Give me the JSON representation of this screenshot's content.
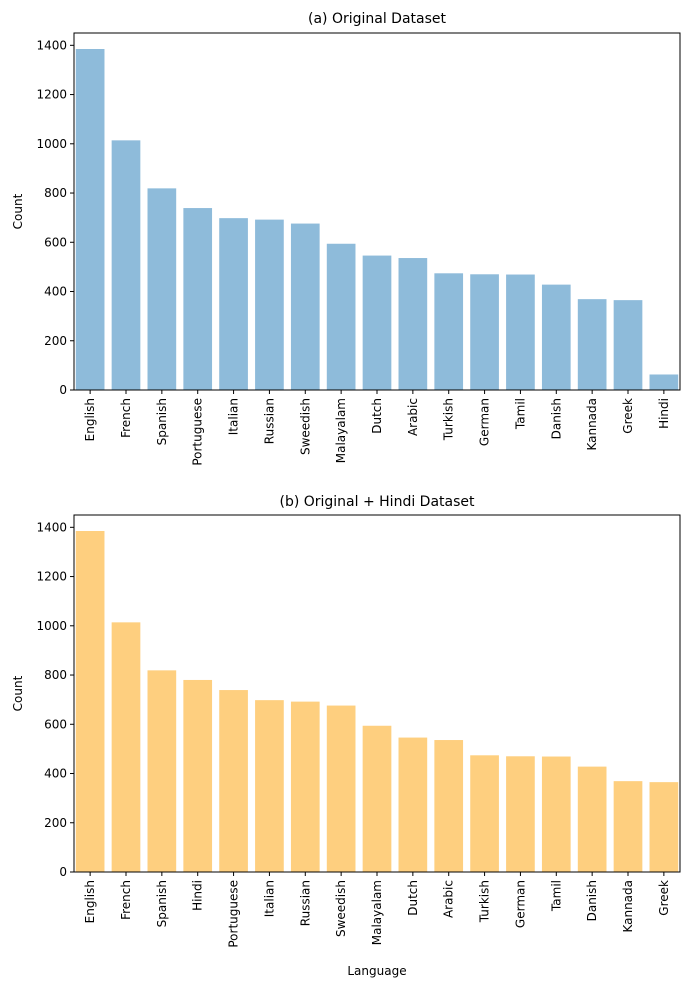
{
  "chart_data": [
    {
      "type": "bar",
      "title": "(a) Original Dataset",
      "xlabel": "",
      "ylabel": "Count",
      "ylim": [
        0,
        1450
      ],
      "yticks": [
        0,
        200,
        400,
        600,
        800,
        1000,
        1200,
        1400
      ],
      "color": "#8ebbda",
      "categories": [
        "English",
        "French",
        "Spanish",
        "Portuguese",
        "Italian",
        "Russian",
        "Sweedish",
        "Malayalam",
        "Dutch",
        "Arabic",
        "Turkish",
        "German",
        "Tamil",
        "Danish",
        "Kannada",
        "Greek",
        "Hindi"
      ],
      "values": [
        1385,
        1014,
        819,
        739,
        698,
        692,
        676,
        594,
        546,
        536,
        474,
        470,
        469,
        428,
        369,
        365,
        63
      ]
    },
    {
      "type": "bar",
      "title": "(b) Original + Hindi Dataset",
      "xlabel": "Language",
      "ylabel": "Count",
      "ylim": [
        0,
        1450
      ],
      "yticks": [
        0,
        200,
        400,
        600,
        800,
        1000,
        1200,
        1400
      ],
      "color": "#fecf7f",
      "categories": [
        "English",
        "French",
        "Spanish",
        "Hindi",
        "Portuguese",
        "Italian",
        "Russian",
        "Sweedish",
        "Malayalam",
        "Dutch",
        "Arabic",
        "Turkish",
        "German",
        "Tamil",
        "Danish",
        "Kannada",
        "Greek"
      ],
      "values": [
        1385,
        1014,
        819,
        780,
        739,
        698,
        692,
        676,
        594,
        546,
        536,
        474,
        470,
        469,
        428,
        369,
        365
      ]
    }
  ]
}
